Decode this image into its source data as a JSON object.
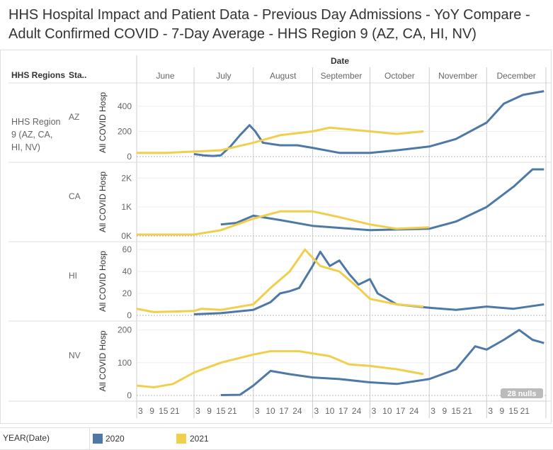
{
  "title": "HHS Hospital Impact and Patient Data - Previous Day Admissions - YoY Compare - Adult Confirmed COVID - 7-Day Average - HHS Region 9 (AZ, CA, HI, NV)",
  "header": {
    "date_label": "Date",
    "regions_label": "HHS Regions",
    "state_label": "Sta.."
  },
  "region": "HHS Region 9 (AZ, CA, HI, NV)",
  "nulls_badge": "28 nulls",
  "legend": {
    "field": "YEAR(Date)",
    "items": [
      {
        "label": "2020",
        "color": "#4e79a7"
      },
      {
        "label": "2021",
        "color": "#f1ce4b"
      }
    ]
  },
  "chart_data": {
    "type": "line",
    "x_unit": "days since June 1",
    "months": [
      "June",
      "July",
      "August",
      "September",
      "October",
      "November",
      "December"
    ],
    "month_start_days": [
      0,
      30,
      61,
      92,
      122,
      153,
      183,
      214
    ],
    "day_ticks": [
      [
        "3",
        "9",
        "15",
        "21"
      ],
      [
        "3",
        "9",
        "15",
        "21"
      ],
      [
        "3",
        "10",
        "17",
        "24"
      ],
      [
        "3",
        "10",
        "17",
        "24"
      ],
      [
        "3",
        "10",
        "17",
        "24"
      ],
      [
        "3",
        "9",
        "15",
        "21"
      ],
      [
        "3",
        "9",
        "15",
        "21"
      ]
    ],
    "ylabel": "All COVID Hosp",
    "panels": [
      {
        "state": "AZ",
        "ylim": [
          0,
          540
        ],
        "ticks": [
          {
            "v": 0,
            "t": "0"
          },
          {
            "v": 200,
            "t": "200"
          },
          {
            "v": 400,
            "t": "400"
          }
        ],
        "series": [
          {
            "name": "2020",
            "points": [
              [
                30,
                20
              ],
              [
                35,
                10
              ],
              [
                40,
                5
              ],
              [
                44,
                10
              ],
              [
                49,
                80
              ],
              [
                54,
                170
              ],
              [
                59,
                250
              ],
              [
                62,
                200
              ],
              [
                66,
                110
              ],
              [
                75,
                90
              ],
              [
                84,
                90
              ],
              [
                92,
                70
              ],
              [
                106,
                30
              ],
              [
                122,
                30
              ],
              [
                136,
                50
              ],
              [
                153,
                80
              ],
              [
                167,
                140
              ],
              [
                183,
                270
              ],
              [
                192,
                420
              ],
              [
                202,
                490
              ],
              [
                213,
                520
              ]
            ]
          },
          {
            "name": "2021",
            "points": [
              [
                0,
                30
              ],
              [
                15,
                30
              ],
              [
                30,
                40
              ],
              [
                44,
                50
              ],
              [
                61,
                110
              ],
              [
                75,
                170
              ],
              [
                92,
                200
              ],
              [
                101,
                230
              ],
              [
                122,
                200
              ],
              [
                136,
                180
              ],
              [
                150,
                200
              ]
            ]
          }
        ]
      },
      {
        "state": "CA",
        "ylim": [
          0,
          2350
        ],
        "ticks": [
          {
            "v": 0,
            "t": "0K"
          },
          {
            "v": 1000,
            "t": "1K"
          },
          {
            "v": 2000,
            "t": "2K"
          }
        ],
        "series": [
          {
            "name": "2020",
            "points": [
              [
                44,
                400
              ],
              [
                52,
                450
              ],
              [
                61,
                700
              ],
              [
                75,
                550
              ],
              [
                92,
                350
              ],
              [
                122,
                200
              ],
              [
                153,
                250
              ],
              [
                167,
                500
              ],
              [
                183,
                1000
              ],
              [
                197,
                1700
              ],
              [
                207,
                2300
              ],
              [
                213,
                2300
              ]
            ]
          },
          {
            "name": "2021",
            "points": [
              [
                0,
                50
              ],
              [
                30,
                50
              ],
              [
                44,
                200
              ],
              [
                61,
                600
              ],
              [
                75,
                850
              ],
              [
                92,
                850
              ],
              [
                106,
                650
              ],
              [
                122,
                400
              ],
              [
                136,
                250
              ],
              [
                153,
                300
              ]
            ]
          }
        ]
      },
      {
        "state": "HI",
        "ylim": [
          0,
          62
        ],
        "ticks": [
          {
            "v": 0,
            "t": "0"
          },
          {
            "v": 20,
            "t": "20"
          },
          {
            "v": 40,
            "t": "40"
          },
          {
            "v": 60,
            "t": "60"
          }
        ],
        "series": [
          {
            "name": "2020",
            "points": [
              [
                30,
                1
              ],
              [
                44,
                2
              ],
              [
                61,
                5
              ],
              [
                70,
                12
              ],
              [
                75,
                20
              ],
              [
                80,
                22
              ],
              [
                85,
                25
              ],
              [
                92,
                45
              ],
              [
                96,
                58
              ],
              [
                101,
                45
              ],
              [
                106,
                50
              ],
              [
                111,
                38
              ],
              [
                116,
                28
              ],
              [
                122,
                33
              ],
              [
                126,
                20
              ],
              [
                136,
                10
              ],
              [
                153,
                7
              ],
              [
                167,
                5
              ],
              [
                183,
                8
              ],
              [
                197,
                6
              ],
              [
                213,
                10
              ]
            ]
          },
          {
            "name": "2021",
            "points": [
              [
                0,
                6
              ],
              [
                9,
                3
              ],
              [
                30,
                4
              ],
              [
                34,
                6
              ],
              [
                44,
                5
              ],
              [
                61,
                10
              ],
              [
                70,
                25
              ],
              [
                80,
                40
              ],
              [
                88,
                60
              ],
              [
                96,
                45
              ],
              [
                106,
                40
              ],
              [
                116,
                25
              ],
              [
                122,
                15
              ],
              [
                136,
                10
              ],
              [
                150,
                8
              ]
            ]
          }
        ]
      },
      {
        "state": "NV",
        "ylim": [
          0,
          210
        ],
        "ticks": [
          {
            "v": 0,
            "t": "0"
          },
          {
            "v": 100,
            "t": "100"
          },
          {
            "v": 200,
            "t": "200"
          }
        ],
        "series": [
          {
            "name": "2020",
            "points": [
              [
                44,
                1
              ],
              [
                54,
                2
              ],
              [
                61,
                30
              ],
              [
                70,
                75
              ],
              [
                80,
                65
              ],
              [
                92,
                55
              ],
              [
                106,
                50
              ],
              [
                122,
                40
              ],
              [
                136,
                35
              ],
              [
                153,
                50
              ],
              [
                167,
                80
              ],
              [
                177,
                150
              ],
              [
                183,
                140
              ],
              [
                192,
                170
              ],
              [
                200,
                200
              ],
              [
                207,
                170
              ],
              [
                213,
                160
              ]
            ]
          },
          {
            "name": "2021",
            "points": [
              [
                0,
                30
              ],
              [
                9,
                25
              ],
              [
                19,
                35
              ],
              [
                30,
                70
              ],
              [
                44,
                100
              ],
              [
                61,
                125
              ],
              [
                70,
                135
              ],
              [
                85,
                135
              ],
              [
                101,
                120
              ],
              [
                111,
                95
              ],
              [
                122,
                90
              ],
              [
                136,
                80
              ],
              [
                150,
                65
              ]
            ]
          }
        ]
      }
    ]
  }
}
